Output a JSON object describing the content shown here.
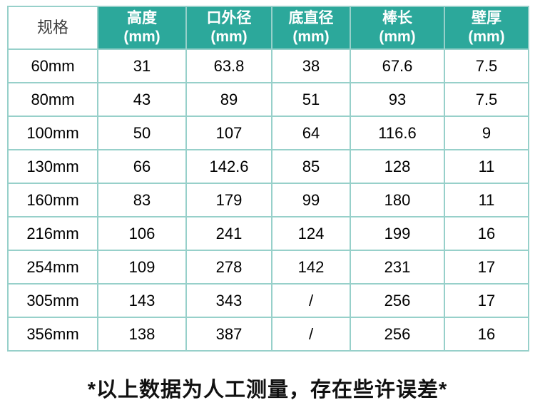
{
  "page": {
    "footnote": "*以上数据为人工测量，存在些许误差*"
  },
  "colors": {
    "header_bg": "#2ca89b",
    "header_text": "#ffffff",
    "border": "#97d0ca",
    "spec_header_bg": "#ffffff",
    "spec_header_text": "#3d3d3d",
    "body_text": "#000000"
  },
  "chart_data": {
    "type": "table",
    "headers": [
      {
        "label": "规格",
        "unit": ""
      },
      {
        "label": "高度",
        "unit": "(mm)"
      },
      {
        "label": "口外径",
        "unit": "(mm)"
      },
      {
        "label": "底直径",
        "unit": "(mm)"
      },
      {
        "label": "棒长",
        "unit": "(mm)"
      },
      {
        "label": "壁厚",
        "unit": "(mm)"
      }
    ],
    "rows": [
      [
        "60mm",
        "31",
        "63.8",
        "38",
        "67.6",
        "7.5"
      ],
      [
        "80mm",
        "43",
        "89",
        "51",
        "93",
        "7.5"
      ],
      [
        "100mm",
        "50",
        "107",
        "64",
        "116.6",
        "9"
      ],
      [
        "130mm",
        "66",
        "142.6",
        "85",
        "128",
        "11"
      ],
      [
        "160mm",
        "83",
        "179",
        "99",
        "180",
        "11"
      ],
      [
        "216mm",
        "106",
        "241",
        "124",
        "199",
        "16"
      ],
      [
        "254mm",
        "109",
        "278",
        "142",
        "231",
        "17"
      ],
      [
        "305mm",
        "143",
        "343",
        "/",
        "256",
        "17"
      ],
      [
        "356mm",
        "138",
        "387",
        "/",
        "256",
        "16"
      ]
    ]
  }
}
